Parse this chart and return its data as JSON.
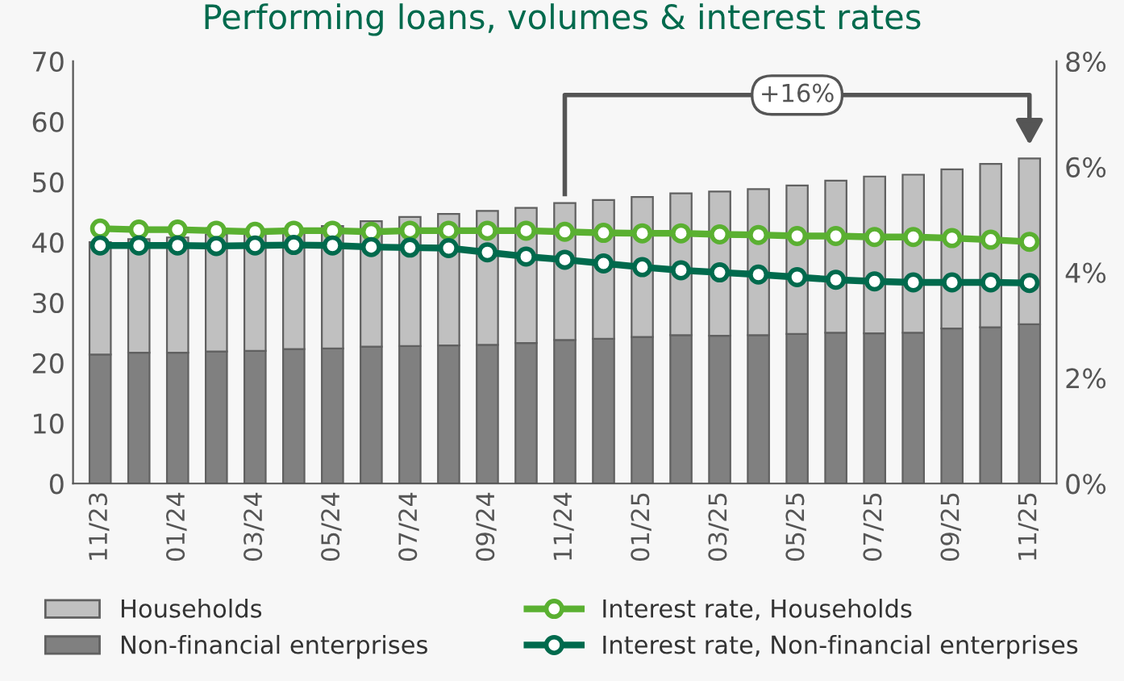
{
  "chart_data": {
    "type": "bar",
    "title": "Performing loans, volumes & interest rates",
    "stacked": true,
    "categories": [
      "11/23",
      null,
      "01/24",
      null,
      "03/24",
      null,
      "05/24",
      null,
      "07/24",
      null,
      "09/24",
      null,
      "11/24",
      null,
      "01/25",
      null,
      "03/25",
      null,
      "05/25",
      null,
      "07/25",
      null,
      "09/25",
      null,
      "11/25"
    ],
    "series": [
      {
        "name": "Non-financial enterprises",
        "color": "#808080",
        "values": [
          21.4,
          21.7,
          21.7,
          21.9,
          22.0,
          22.3,
          22.4,
          22.7,
          22.8,
          22.9,
          23.0,
          23.3,
          23.8,
          24.0,
          24.3,
          24.6,
          24.5,
          24.6,
          24.8,
          25.0,
          24.9,
          25.0,
          25.7,
          25.9,
          26.4
        ]
      },
      {
        "name": "Households",
        "color": "#c0c0c0",
        "values": [
          18.6,
          18.8,
          19.1,
          19.4,
          19.7,
          20.0,
          20.3,
          20.8,
          21.4,
          21.8,
          22.2,
          22.4,
          22.7,
          23.0,
          23.2,
          23.5,
          23.9,
          24.2,
          24.6,
          25.2,
          26.0,
          26.2,
          26.4,
          27.1,
          27.5
        ]
      },
      {
        "name": "Interest rate, Households",
        "type": "line",
        "axis": "y2",
        "marker": "circle",
        "color": "#5ab031",
        "values": [
          4.83,
          4.81,
          4.81,
          4.79,
          4.77,
          4.79,
          4.79,
          4.77,
          4.79,
          4.79,
          4.79,
          4.79,
          4.77,
          4.75,
          4.74,
          4.74,
          4.72,
          4.71,
          4.69,
          4.69,
          4.67,
          4.67,
          4.65,
          4.62,
          4.58
        ]
      },
      {
        "name": "Interest rate, Non-financial enterprises",
        "type": "line",
        "axis": "y2",
        "marker": "circle",
        "color": "#006a4d",
        "values": [
          4.51,
          4.51,
          4.51,
          4.5,
          4.51,
          4.52,
          4.51,
          4.48,
          4.47,
          4.46,
          4.38,
          4.3,
          4.24,
          4.17,
          4.1,
          4.04,
          4.0,
          3.96,
          3.91,
          3.86,
          3.83,
          3.81,
          3.81,
          3.81,
          3.8
        ]
      }
    ],
    "ylim": [
      0,
      70
    ],
    "yticks": [
      0,
      10,
      20,
      30,
      40,
      50,
      60,
      70
    ],
    "y2lim": [
      0,
      8
    ],
    "y2ticks": [
      {
        "value": 0,
        "label": "0%"
      },
      {
        "value": 2,
        "label": "2%"
      },
      {
        "value": 4,
        "label": "4%"
      },
      {
        "value": 6,
        "label": "6%"
      },
      {
        "value": 8,
        "label": "8%"
      }
    ],
    "annotations": [
      "+16%"
    ],
    "grid": false,
    "legend": "bottom"
  }
}
